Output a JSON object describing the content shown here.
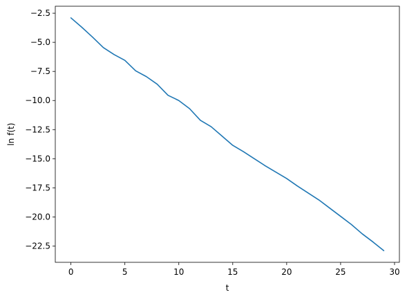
{
  "chart_data": {
    "type": "line",
    "title": "",
    "xlabel": "t",
    "ylabel": "ln f(t)",
    "xlim": [
      -1.45,
      30.45
    ],
    "ylim": [
      -23.9,
      -1.9
    ],
    "x_ticks": [
      0,
      5,
      10,
      15,
      20,
      25,
      30
    ],
    "x_tick_labels": [
      "0",
      "5",
      "10",
      "15",
      "20",
      "25",
      "30"
    ],
    "y_ticks": [
      -2.5,
      -5.0,
      -7.5,
      -10.0,
      -12.5,
      -15.0,
      -17.5,
      -20.0,
      -22.5
    ],
    "y_tick_labels": [
      "−2.5",
      "−5.0",
      "−7.5",
      "−10.0",
      "−12.5",
      "−15.0",
      "−17.5",
      "−20.0",
      "−22.5"
    ],
    "grid": false,
    "legend": "none",
    "series": [
      {
        "color": "#1f77b4",
        "x": [
          0,
          1,
          2,
          3,
          4,
          5,
          6,
          7,
          8,
          9,
          10,
          11,
          12,
          13,
          14,
          15,
          16,
          17,
          18,
          19,
          20,
          21,
          22,
          23,
          24,
          25,
          26,
          27,
          28,
          29
        ],
        "y": [
          -2.9,
          -3.7,
          -4.55,
          -5.45,
          -6.05,
          -6.55,
          -7.45,
          -7.95,
          -8.6,
          -9.55,
          -10.0,
          -10.7,
          -11.7,
          -12.25,
          -13.05,
          -13.85,
          -14.4,
          -15.0,
          -15.6,
          -16.15,
          -16.7,
          -17.35,
          -17.95,
          -18.55,
          -19.25,
          -19.95,
          -20.65,
          -21.45,
          -22.15,
          -22.9
        ]
      }
    ]
  }
}
